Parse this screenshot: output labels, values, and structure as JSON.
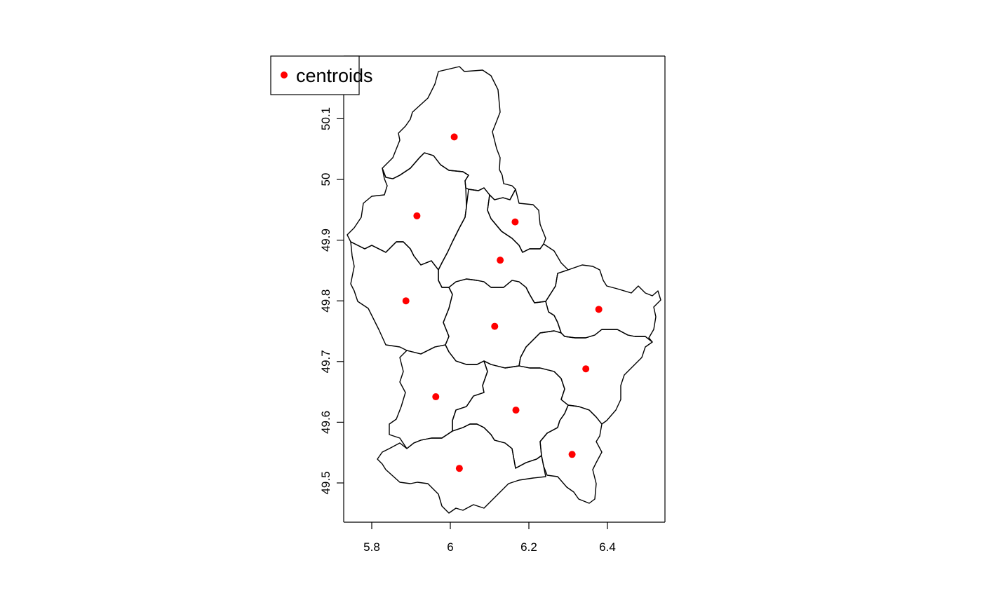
{
  "map": {
    "x_ticks": [
      "5.8",
      "6",
      "6.2",
      "6.4"
    ],
    "y_ticks": [
      "49.5",
      "49.6",
      "49.7",
      "49.8",
      "49.9",
      "50",
      "50.1"
    ],
    "legend": {
      "label": "centroids",
      "marker_color": "#ff0000"
    },
    "point_color": "#ff0000",
    "border_color": "#000000",
    "xlim": [
      5.73,
      6.53
    ],
    "ylim": [
      49.45,
      50.19
    ],
    "centroids": [
      {
        "lon": 6.01,
        "lat": 50.07
      },
      {
        "lon": 5.915,
        "lat": 49.94
      },
      {
        "lon": 6.165,
        "lat": 49.93
      },
      {
        "lon": 6.127,
        "lat": 49.867
      },
      {
        "lon": 5.887,
        "lat": 49.8
      },
      {
        "lon": 6.378,
        "lat": 49.786
      },
      {
        "lon": 6.113,
        "lat": 49.758
      },
      {
        "lon": 6.345,
        "lat": 49.688
      },
      {
        "lon": 5.963,
        "lat": 49.642
      },
      {
        "lon": 6.167,
        "lat": 49.62
      },
      {
        "lon": 6.31,
        "lat": 49.547
      },
      {
        "lon": 6.023,
        "lat": 49.524
      }
    ]
  }
}
